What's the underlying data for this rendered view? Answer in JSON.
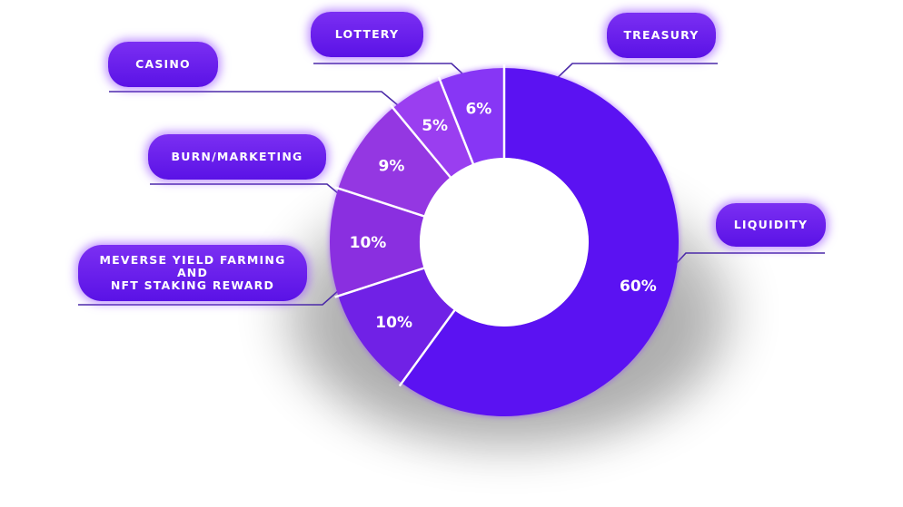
{
  "chart_data": {
    "type": "pie",
    "variant": "donut",
    "categories": [
      "Liquidity",
      "MEVerse Yield Farming and NFT Staking Reward",
      "Burn/Marketing",
      "Casino",
      "Lottery",
      "Treasury"
    ],
    "values": [
      60,
      10,
      10,
      9,
      5,
      6
    ],
    "data_labels": [
      "60%",
      "10%",
      "10%",
      "9%",
      "5%",
      "6%"
    ],
    "callout_labels": {
      "liquidity": "LIQUIDITY",
      "yield_line1": "MEVERSE YIELD FARMING",
      "yield_line2": "AND",
      "yield_line3": "NFT STAKING REWARD",
      "burn": "BURN/MARKETING",
      "casino": "CASINO",
      "lottery": "LOTTERY",
      "treasury": "TREASURY"
    },
    "colors": {
      "liquidity": "#5b12f2",
      "yield": "#7021e6",
      "burn": "#8a2fe0",
      "casino": "#9437e2",
      "lottery": "#9a3ef0",
      "treasury": "#8736f5",
      "label_text": "#ffffff",
      "callout_bg": "#6a1ff0",
      "leader_line": "#4b2aa8"
    },
    "title": "",
    "legend": "none"
  }
}
